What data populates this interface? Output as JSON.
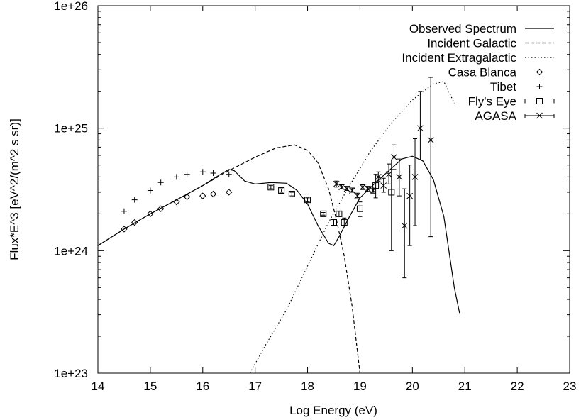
{
  "chart_data": {
    "type": "line",
    "xlabel": "Log Energy (eV)",
    "ylabel": "Flux*E^3 [eV^2/(m^2 s sr)]",
    "xlim": [
      14,
      23
    ],
    "ylim": [
      1e+23,
      1e+26
    ],
    "yscale": "log",
    "grid": false,
    "legend_position": "top-right",
    "x_ticks": [
      14,
      15,
      16,
      17,
      18,
      19,
      20,
      21,
      22,
      23
    ],
    "x_tick_labels": [
      "14",
      "15",
      "16",
      "17",
      "18",
      "19",
      "20",
      "21",
      "22",
      "23"
    ],
    "y_ticks": [
      1e+23,
      1e+24,
      1e+25,
      1e+26
    ],
    "y_tick_labels": [
      "1e+23",
      "1e+24",
      "1e+25",
      "1e+26"
    ],
    "series": [
      {
        "name": "Observed Spectrum",
        "kind": "line",
        "dash": "solid",
        "points": [
          [
            14.0,
            1.1e+24
          ],
          [
            14.5,
            1.5e+24
          ],
          [
            15.0,
            2e+24
          ],
          [
            15.5,
            2.6e+24
          ],
          [
            16.0,
            3.4e+24
          ],
          [
            16.3,
            4.1e+24
          ],
          [
            16.5,
            4.6e+24
          ],
          [
            16.6,
            4.5e+24
          ],
          [
            16.8,
            3.7e+24
          ],
          [
            17.0,
            3.5e+24
          ],
          [
            17.3,
            3.6e+24
          ],
          [
            17.6,
            3.55e+24
          ],
          [
            17.8,
            3.1e+24
          ],
          [
            18.0,
            2.4e+24
          ],
          [
            18.2,
            1.6e+24
          ],
          [
            18.4,
            1.15e+24
          ],
          [
            18.5,
            1.1e+24
          ],
          [
            18.6,
            1.3e+24
          ],
          [
            18.8,
            1.9e+24
          ],
          [
            19.0,
            2.7e+24
          ],
          [
            19.3,
            3.6e+24
          ],
          [
            19.6,
            4.7e+24
          ],
          [
            19.8,
            5.6e+24
          ],
          [
            20.0,
            5.9e+24
          ],
          [
            20.2,
            5.4e+24
          ],
          [
            20.4,
            3.8e+24
          ],
          [
            20.6,
            1.9e+24
          ],
          [
            20.8,
            5e+23
          ],
          [
            20.9,
            3.1e+23
          ]
        ]
      },
      {
        "name": "Incident Galactic",
        "kind": "line",
        "dash": "dashed",
        "points": [
          [
            14.0,
            1.1e+24
          ],
          [
            14.5,
            1.5e+24
          ],
          [
            15.0,
            2e+24
          ],
          [
            15.5,
            2.6e+24
          ],
          [
            16.0,
            3.4e+24
          ],
          [
            16.5,
            4.5e+24
          ],
          [
            17.0,
            5.8e+24
          ],
          [
            17.4,
            6.9e+24
          ],
          [
            17.75,
            7.3e+24
          ],
          [
            18.0,
            6.6e+24
          ],
          [
            18.2,
            5.2e+24
          ],
          [
            18.4,
            3.2e+24
          ],
          [
            18.55,
            1.8e+24
          ],
          [
            18.7,
            9e+23
          ],
          [
            18.85,
            3.5e+23
          ],
          [
            19.0,
            1e+23
          ]
        ]
      },
      {
        "name": "Incident Extragalactic",
        "kind": "line",
        "dash": "dotted",
        "points": [
          [
            16.9,
            1e+23
          ],
          [
            17.2,
            1.7e+23
          ],
          [
            17.6,
            3.3e+23
          ],
          [
            18.0,
            7.5e+23
          ],
          [
            18.4,
            1.7e+24
          ],
          [
            18.8,
            3.4e+24
          ],
          [
            19.2,
            6.5e+24
          ],
          [
            19.6,
            1.1e+25
          ],
          [
            20.0,
            1.7e+25
          ],
          [
            20.4,
            2.3e+25
          ],
          [
            20.6,
            2.4e+25
          ],
          [
            20.8,
            1.6e+25
          ]
        ]
      },
      {
        "name": "Casa Blanca",
        "kind": "points",
        "marker": "diamond",
        "points": [
          [
            14.5,
            1.5e+24
          ],
          [
            14.7,
            1.7e+24
          ],
          [
            15.0,
            2e+24
          ],
          [
            15.2,
            2.2e+24
          ],
          [
            15.5,
            2.5e+24
          ],
          [
            15.7,
            2.75e+24
          ],
          [
            16.0,
            2.8e+24
          ],
          [
            16.2,
            2.9e+24
          ],
          [
            16.5,
            3e+24
          ]
        ]
      },
      {
        "name": "Tibet",
        "kind": "points",
        "marker": "plus",
        "points": [
          [
            14.5,
            2.1e+24
          ],
          [
            14.7,
            2.6e+24
          ],
          [
            15.0,
            3.1e+24
          ],
          [
            15.2,
            3.6e+24
          ],
          [
            15.5,
            4e+24
          ],
          [
            15.7,
            4.2e+24
          ],
          [
            16.0,
            4.4e+24
          ],
          [
            16.2,
            4.3e+24
          ],
          [
            16.5,
            4.2e+24
          ]
        ]
      },
      {
        "name": "Fly's Eye",
        "kind": "errorbars",
        "marker": "square",
        "points": [
          [
            17.3,
            3.3e+24,
            3.2e+24,
            3.4e+24
          ],
          [
            17.5,
            3.1e+24,
            3e+24,
            3.2e+24
          ],
          [
            17.7,
            2.9e+24,
            2.8e+24,
            3e+24
          ],
          [
            18.0,
            2.6e+24,
            2.5e+24,
            2.7e+24
          ],
          [
            18.3,
            2e+24,
            1.95e+24,
            2.05e+24
          ],
          [
            18.5,
            1.7e+24,
            1.6e+24,
            1.8e+24
          ],
          [
            18.6,
            2e+24,
            1.9e+24,
            2.1e+24
          ],
          [
            18.7,
            1.7e+24,
            1.6e+24,
            1.85e+24
          ],
          [
            19.0,
            2.2e+24,
            1.9e+24,
            2.5e+24
          ],
          [
            19.3,
            3.4e+24,
            2.7e+24,
            4.2e+24
          ],
          [
            19.6,
            3e+24,
            1e+24,
            5.5e+24
          ]
        ]
      },
      {
        "name": "AGASA",
        "kind": "errorbars",
        "marker": "cross",
        "points": [
          [
            18.55,
            3.5e+24,
            3.3e+24,
            3.7e+24
          ],
          [
            18.65,
            3.3e+24,
            3.2e+24,
            3.45e+24
          ],
          [
            18.75,
            3.2e+24,
            3.1e+24,
            3.35e+24
          ],
          [
            18.85,
            3.1e+24,
            3e+24,
            3.25e+24
          ],
          [
            18.95,
            2.8e+24,
            2.7e+24,
            2.95e+24
          ],
          [
            19.05,
            3.3e+24,
            3.15e+24,
            3.45e+24
          ],
          [
            19.15,
            3.2e+24,
            3.05e+24,
            3.35e+24
          ],
          [
            19.25,
            3.1e+24,
            2.95e+24,
            3.3e+24
          ],
          [
            19.35,
            4e+24,
            3.7e+24,
            4.4e+24
          ],
          [
            19.45,
            3.4e+24,
            3e+24,
            3.9e+24
          ],
          [
            19.55,
            4.2e+24,
            3.5e+24,
            5.1e+24
          ],
          [
            19.65,
            5.8e+24,
            4.6e+24,
            7.3e+24
          ],
          [
            19.75,
            4e+24,
            2.8e+24,
            5.6e+24
          ],
          [
            19.85,
            1.6e+24,
            6e+23,
            3.2e+24
          ],
          [
            19.95,
            2.8e+24,
            1.1e+24,
            5e+24
          ],
          [
            20.05,
            4e+24,
            1.6e+24,
            8.2e+24
          ],
          [
            20.15,
            1e+25,
            5.5e+24,
            2e+25
          ],
          [
            20.35,
            8e+24,
            1.3e+24,
            2.6e+25
          ]
        ]
      }
    ]
  },
  "colors": {
    "ink": "#000000",
    "background": "#ffffff"
  }
}
